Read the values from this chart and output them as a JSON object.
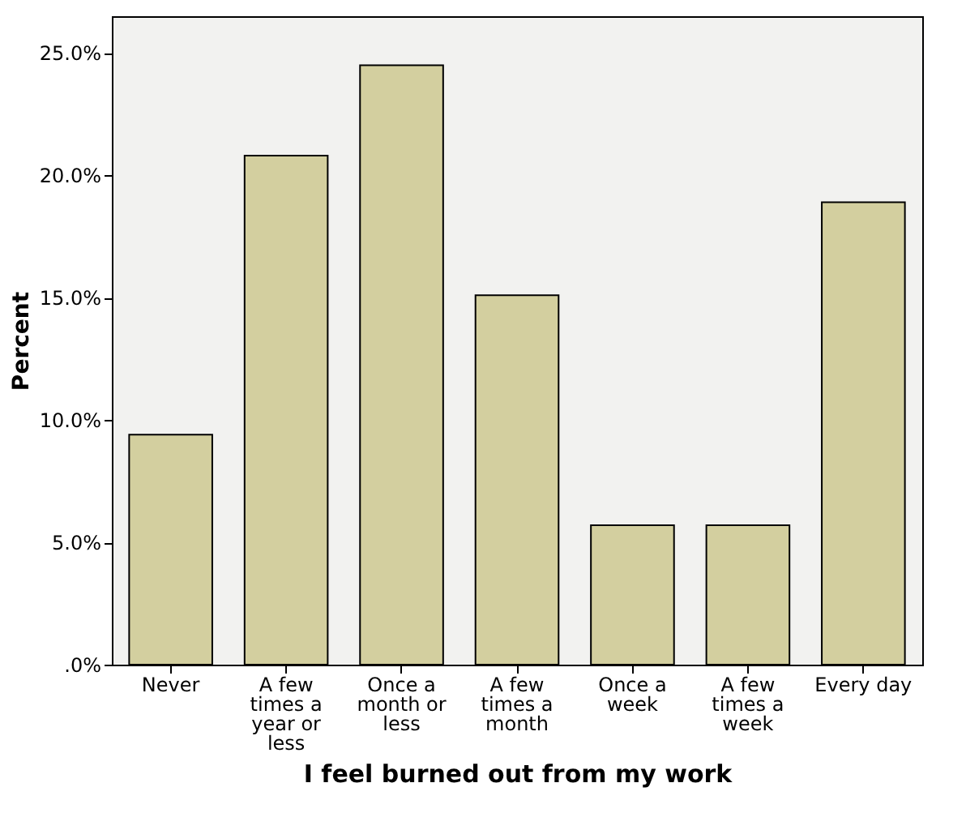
{
  "chart_data": {
    "type": "bar",
    "xlabel": "I feel burned out from my work",
    "ylabel": "Percent",
    "categories": [
      "Never",
      "A few times a year or less",
      "Once a month or less",
      "A few times a month",
      "Once a week",
      "A few times a week",
      "Every day"
    ],
    "values": [
      9.4,
      20.8,
      24.5,
      15.1,
      5.7,
      5.7,
      18.9
    ],
    "color": "#d3cf9f",
    "ylim": [
      0,
      26.5
    ],
    "yticks": [
      {
        "value": 0,
        "label": ".0%"
      },
      {
        "value": 5,
        "label": "5.0%"
      },
      {
        "value": 10,
        "label": "10.0%"
      },
      {
        "value": 15,
        "label": "15.0%"
      },
      {
        "value": 20,
        "label": "20.0%"
      },
      {
        "value": 25,
        "label": "25.0%"
      }
    ],
    "grid": false
  }
}
